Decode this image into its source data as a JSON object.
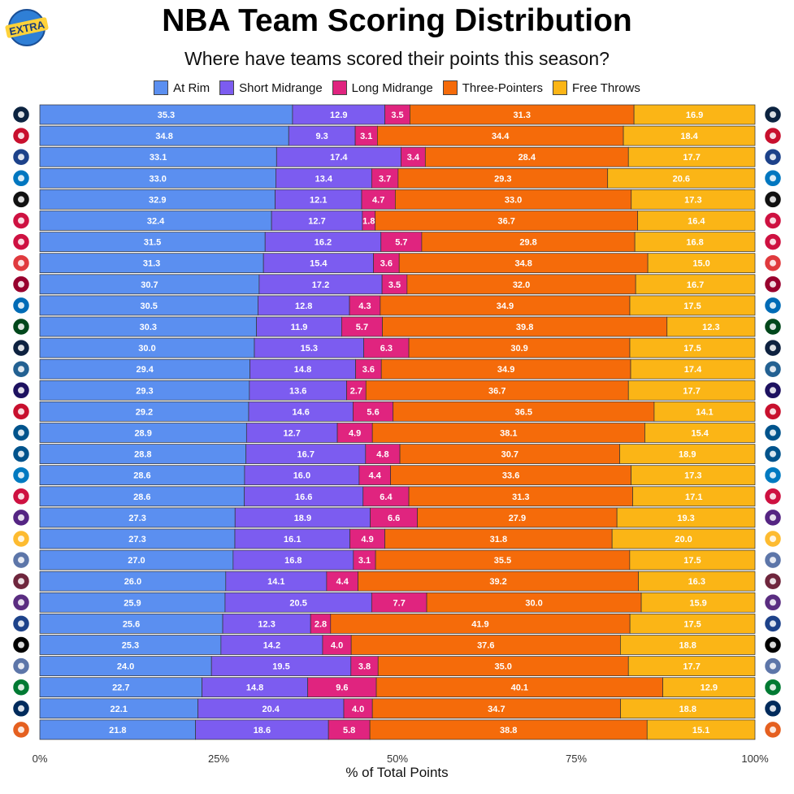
{
  "badge": {
    "text": "EXTRA"
  },
  "chart_data": {
    "type": "bar",
    "orientation": "horizontal-stacked-100",
    "title": "NBA Team Scoring Distribution",
    "subtitle": "Where have teams scored their points this season?",
    "xlabel": "% of Total Points",
    "xlim": [
      0,
      100
    ],
    "x_ticks": [
      "0%",
      "25%",
      "50%",
      "75%",
      "100%"
    ],
    "legend_position": "top",
    "series": [
      {
        "name": "At Rim",
        "color": "#5b8ff0",
        "values": [
          35.3,
          34.8,
          33.1,
          33.0,
          32.9,
          32.4,
          31.5,
          31.3,
          30.7,
          30.5,
          30.3,
          30.0,
          29.4,
          29.3,
          29.2,
          28.9,
          28.8,
          28.6,
          28.6,
          27.3,
          27.3,
          27.0,
          26.0,
          25.9,
          25.6,
          25.3,
          24.0,
          22.7,
          22.1,
          21.8
        ]
      },
      {
        "name": "Short Midrange",
        "color": "#7c5cf0",
        "values": [
          12.9,
          9.3,
          17.4,
          13.4,
          12.1,
          12.7,
          16.2,
          15.4,
          17.2,
          12.8,
          11.9,
          15.3,
          14.8,
          13.6,
          14.6,
          12.7,
          16.7,
          16.0,
          16.6,
          18.9,
          16.1,
          16.8,
          14.1,
          20.5,
          12.3,
          14.2,
          19.5,
          14.8,
          20.4,
          18.6
        ]
      },
      {
        "name": "Long Midrange",
        "color": "#e0247f",
        "values": [
          3.5,
          3.1,
          3.4,
          3.7,
          4.7,
          1.8,
          5.7,
          3.6,
          3.5,
          4.3,
          5.7,
          6.3,
          3.6,
          2.7,
          5.6,
          4.9,
          4.8,
          4.4,
          6.4,
          6.6,
          4.9,
          3.1,
          4.4,
          7.7,
          2.8,
          4.0,
          3.8,
          9.6,
          4.0,
          5.8
        ]
      },
      {
        "name": "Three-Pointers",
        "color": "#f56b0a",
        "values": [
          31.3,
          34.4,
          28.4,
          29.3,
          33.0,
          36.7,
          29.8,
          34.8,
          32.0,
          34.9,
          39.8,
          30.9,
          34.9,
          36.7,
          36.5,
          38.1,
          30.7,
          33.6,
          31.3,
          27.9,
          31.8,
          35.5,
          39.2,
          30.0,
          41.9,
          37.6,
          35.0,
          40.1,
          34.7,
          38.8
        ]
      },
      {
        "name": "Free Throws",
        "color": "#fbb516",
        "values": [
          16.9,
          18.4,
          17.7,
          20.6,
          17.3,
          16.4,
          16.8,
          15.0,
          16.7,
          17.5,
          12.3,
          17.5,
          17.4,
          17.7,
          14.1,
          15.4,
          18.9,
          17.3,
          17.1,
          19.3,
          20.0,
          17.5,
          16.3,
          15.9,
          17.5,
          18.8,
          17.7,
          12.9,
          18.8,
          15.1
        ]
      }
    ],
    "team_logos": [
      "pelicans-logo",
      "trail-blazers-logo",
      "pistons-logo",
      "magic-logo",
      "spurs-logo",
      "bulls-logo",
      "raptors-logo",
      "hawks-logo",
      "heat-logo",
      "76ers-logo",
      "bucks-logo",
      "nuggets-logo",
      "timberwolves-logo",
      "hornets-logo",
      "wizards-logo",
      "mavericks-logo",
      "mavericks-logo",
      "thunder-logo",
      "rockets-logo",
      "lakers-logo",
      "pacers-logo",
      "grizzlies-logo",
      "cavaliers-logo",
      "kings-logo",
      "warriors-logo",
      "nets-logo",
      "grizzlies-logo",
      "celtics-logo",
      "jazz-logo",
      "suns-logo"
    ],
    "logo_colors": [
      "#0c2340",
      "#c8102e",
      "#1d428a",
      "#0077c0",
      "#111111",
      "#ce1141",
      "#ce1141",
      "#e03a3e",
      "#98002e",
      "#006bb6",
      "#00471b",
      "#0e2240",
      "#236192",
      "#1d1160",
      "#c8102e",
      "#00538c",
      "#00538c",
      "#007ac1",
      "#ce1141",
      "#552583",
      "#fdbb30",
      "#5d76a9",
      "#6f263d",
      "#5a2d81",
      "#1d428a",
      "#000000",
      "#5d76a9",
      "#007a33",
      "#002b5c",
      "#e56020"
    ]
  }
}
